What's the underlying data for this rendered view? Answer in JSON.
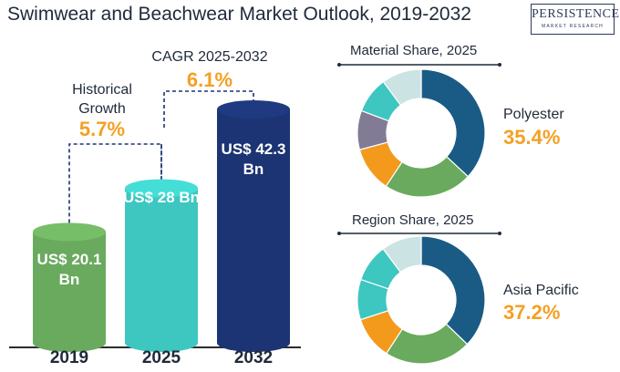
{
  "title": "Swimwear and Beachwear Market Outlook, 2019-2032",
  "logo": {
    "main": "PERSISTENCE",
    "sub": "MARKET RESEARCH"
  },
  "historical": {
    "label_line1": "Historical",
    "label_line2": "Growth",
    "value": "5.7%"
  },
  "cagr": {
    "label": "CAGR 2025-2032",
    "value": "6.1%"
  },
  "material_share": {
    "title": "Material Share, 2025",
    "highlight_label": "Polyester",
    "highlight_value": "35.4%"
  },
  "region_share": {
    "title": "Region Share, 2025",
    "highlight_label": "Asia Pacific",
    "highlight_value": "37.2%"
  },
  "chart_data": [
    {
      "type": "bar",
      "categories": [
        "2019",
        "2025",
        "2032"
      ],
      "values": [
        20.1,
        28,
        42.3
      ],
      "value_labels": [
        "US$ 20.1 Bn",
        "US$ 28 Bn",
        "US$ 42.3 Bn"
      ],
      "colors": [
        "#6aaa5e",
        "#3ec6c0",
        "#1c3473"
      ],
      "title": "",
      "xlabel": "",
      "ylabel": ""
    },
    {
      "type": "pie",
      "title": "Material Share, 2025",
      "values": [
        35.4,
        21.5,
        11.0,
        9.5,
        8.8,
        9.7
      ],
      "colors": [
        "#1a5b86",
        "#6aaa5e",
        "#f39a1d",
        "#827b95",
        "#3ec6c0",
        "#cce3e3"
      ],
      "labels": [
        "Polyester",
        "",
        "",
        "",
        "",
        ""
      ]
    },
    {
      "type": "pie",
      "title": "Region Share, 2025",
      "values": [
        37.2,
        22.0,
        10.8,
        10.2,
        9.6,
        10.2
      ],
      "colors": [
        "#1a5b86",
        "#6aaa5e",
        "#f39a1d",
        "#3ec6c0",
        "#3ec6c0",
        "#cce3e3"
      ],
      "labels": [
        "Asia Pacific",
        "",
        "",
        "",
        "",
        ""
      ]
    }
  ]
}
